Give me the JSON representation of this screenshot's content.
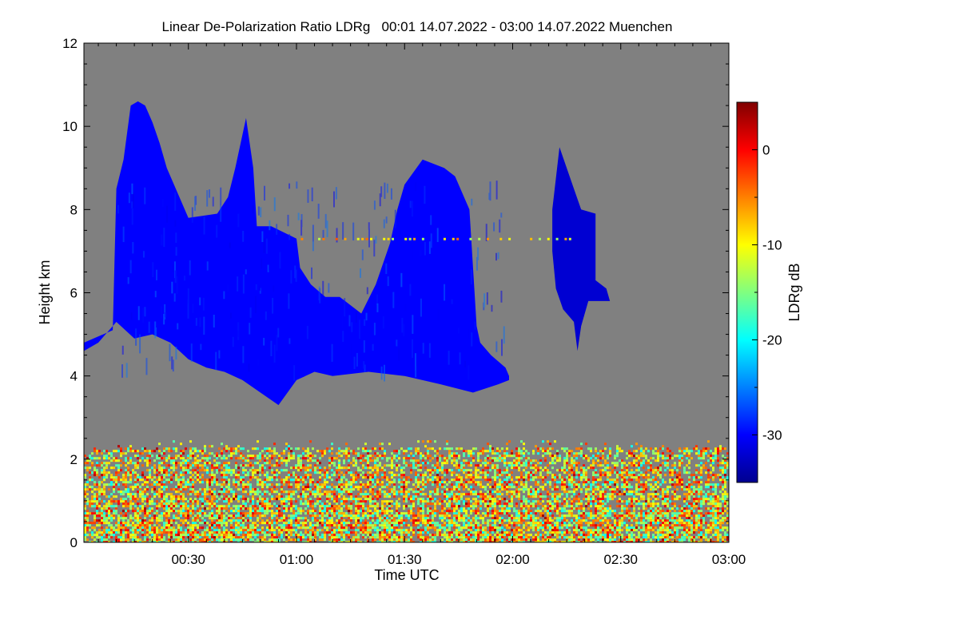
{
  "chart_data": {
    "type": "heatmap",
    "title": "Linear De-Polarization Ratio LDRg   00:01 14.07.2022 - 03:00 14.07.2022 Muenchen",
    "xlabel": "Time UTC",
    "ylabel": "Height km",
    "xlim_minutes": [
      1,
      180
    ],
    "ylim_km": [
      0,
      12
    ],
    "x_ticks": [
      {
        "minutes": 30,
        "label": "00:30"
      },
      {
        "minutes": 60,
        "label": "01:00"
      },
      {
        "minutes": 90,
        "label": "01:30"
      },
      {
        "minutes": 120,
        "label": "02:00"
      },
      {
        "minutes": 150,
        "label": "02:30"
      },
      {
        "minutes": 180,
        "label": "03:00"
      }
    ],
    "y_ticks": [
      {
        "km": 0,
        "label": "0"
      },
      {
        "km": 2,
        "label": "2"
      },
      {
        "km": 4,
        "label": "4"
      },
      {
        "km": 6,
        "label": "6"
      },
      {
        "km": 8,
        "label": "8"
      },
      {
        "km": 10,
        "label": "10"
      },
      {
        "km": 12,
        "label": "12"
      }
    ],
    "background_color": "#808080",
    "colorbar": {
      "label": "LDRg dB",
      "range_db": [
        -35,
        5
      ],
      "ticks": [
        {
          "db": 0,
          "label": "0"
        },
        {
          "db": -10,
          "label": "-10"
        },
        {
          "db": -20,
          "label": "-20"
        },
        {
          "db": -30,
          "label": "-30"
        }
      ],
      "colormap": [
        "#00008f",
        "#0000ff",
        "#0080ff",
        "#00ffff",
        "#80ff80",
        "#ffff00",
        "#ff8000",
        "#ff0000",
        "#800000"
      ]
    },
    "cirrus_cloud": {
      "ldr_db_approx": -30,
      "top_boundary_km": [
        [
          1,
          4.8
        ],
        [
          9,
          5.1
        ],
        [
          10,
          8.5
        ],
        [
          12,
          9.2
        ],
        [
          14,
          10.5
        ],
        [
          16,
          10.6
        ],
        [
          18,
          10.5
        ],
        [
          20,
          10.1
        ],
        [
          22,
          9.6
        ],
        [
          24,
          9.0
        ],
        [
          28,
          8.2
        ],
        [
          30,
          7.8
        ],
        [
          38,
          7.9
        ],
        [
          41,
          8.3
        ],
        [
          43,
          9.0
        ],
        [
          46,
          10.2
        ],
        [
          48,
          9.0
        ],
        [
          49,
          7.6
        ],
        [
          53,
          7.6
        ],
        [
          60,
          7.3
        ],
        [
          61,
          6.6
        ],
        [
          64,
          6.2
        ],
        [
          68,
          5.9
        ],
        [
          72,
          5.9
        ],
        [
          78,
          5.5
        ],
        [
          82,
          6.2
        ],
        [
          86,
          7.2
        ],
        [
          88,
          8.0
        ],
        [
          90,
          8.6
        ],
        [
          95,
          9.2
        ],
        [
          101,
          9.0
        ],
        [
          104,
          8.8
        ],
        [
          108,
          8.0
        ],
        [
          110,
          5.2
        ],
        [
          111,
          4.8
        ],
        [
          114,
          4.5
        ],
        [
          118,
          4.2
        ],
        [
          119,
          4.0
        ]
      ],
      "base_boundary_km": [
        [
          119,
          3.9
        ],
        [
          116,
          3.8
        ],
        [
          109,
          3.6
        ],
        [
          100,
          3.8
        ],
        [
          90,
          4.0
        ],
        [
          80,
          4.1
        ],
        [
          70,
          4.0
        ],
        [
          65,
          4.1
        ],
        [
          60,
          3.9
        ],
        [
          55,
          3.3
        ],
        [
          50,
          3.6
        ],
        [
          45,
          3.9
        ],
        [
          40,
          4.1
        ],
        [
          35,
          4.2
        ],
        [
          30,
          4.4
        ],
        [
          25,
          4.8
        ],
        [
          20,
          5.0
        ],
        [
          15,
          4.9
        ],
        [
          10,
          5.3
        ],
        [
          5,
          4.8
        ],
        [
          1,
          4.6
        ]
      ],
      "second_cloud_top_km": [
        [
          131,
          8.0
        ],
        [
          133,
          9.5
        ],
        [
          135,
          9.0
        ],
        [
          137,
          8.5
        ],
        [
          139,
          8.0
        ],
        [
          143,
          7.9
        ],
        [
          143,
          6.3
        ],
        [
          146,
          6.1
        ],
        [
          147,
          5.8
        ],
        [
          142,
          5.8
        ]
      ],
      "second_cloud_base_km": [
        [
          141,
          5.8
        ],
        [
          139,
          5.2
        ],
        [
          138,
          4.6
        ],
        [
          137,
          5.3
        ],
        [
          134,
          5.6
        ],
        [
          132,
          6.1
        ],
        [
          131,
          7.0
        ]
      ]
    },
    "aerosol_layer": {
      "description_range_db": [
        -20,
        0
      ],
      "top_km": 2.3,
      "bottom_km": 0,
      "thin_line_km": 7.3
    }
  }
}
